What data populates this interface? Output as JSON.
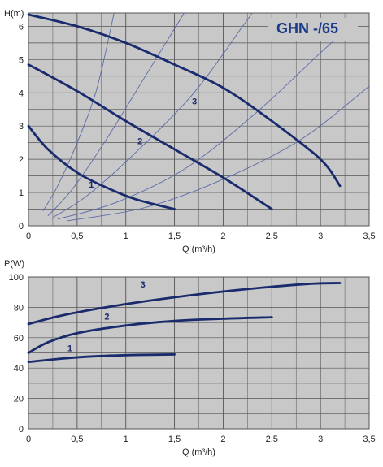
{
  "colors": {
    "background": "#c8c8c8",
    "grid": "#555555",
    "curve": "#1a2b6d",
    "system": "#5a6aa8",
    "title": "#1a3a8a"
  },
  "chart_data": [
    {
      "type": "line",
      "title": "GHN -/65",
      "ylabel": "H(m)",
      "xlabel": "Q (m³/h)",
      "xlim": [
        0,
        3.5
      ],
      "ylim": [
        0,
        6.4
      ],
      "x_ticks": [
        0,
        0.5,
        1,
        1.5,
        2,
        2.5,
        3,
        3.5
      ],
      "x_tick_labels": [
        "0",
        "0,5",
        "1",
        "1,5",
        "2",
        "2,5",
        "3",
        "3,5"
      ],
      "y_ticks": [
        0,
        1,
        2,
        3,
        4,
        5,
        6
      ],
      "y_tick_labels": [
        "0",
        "1",
        "2",
        "3",
        "4",
        "5",
        "6"
      ],
      "grid": true,
      "series": [
        {
          "name": "1",
          "label_at": [
            0.62,
            1.15
          ],
          "points": [
            [
              0,
              3.0
            ],
            [
              0.2,
              2.3
            ],
            [
              0.5,
              1.6
            ],
            [
              0.8,
              1.15
            ],
            [
              1.1,
              0.8
            ],
            [
              1.5,
              0.5
            ]
          ]
        },
        {
          "name": "2",
          "label_at": [
            1.12,
            2.45
          ],
          "points": [
            [
              0,
              4.85
            ],
            [
              0.5,
              4.05
            ],
            [
              1.0,
              3.15
            ],
            [
              1.5,
              2.3
            ],
            [
              2.0,
              1.45
            ],
            [
              2.5,
              0.5
            ]
          ]
        },
        {
          "name": "3",
          "label_at": [
            1.68,
            3.65
          ],
          "points": [
            [
              0,
              6.35
            ],
            [
              0.5,
              6.0
            ],
            [
              1.0,
              5.5
            ],
            [
              1.5,
              4.85
            ],
            [
              2.0,
              4.15
            ],
            [
              2.5,
              3.15
            ],
            [
              3.0,
              2.0
            ],
            [
              3.2,
              1.2
            ]
          ]
        }
      ],
      "system_curves": [
        {
          "points": [
            [
              0.15,
              0.45
            ],
            [
              0.3,
              1.2
            ],
            [
              0.5,
              2.5
            ],
            [
              0.7,
              4.1
            ],
            [
              0.88,
              6.4
            ]
          ]
        },
        {
          "points": [
            [
              0.2,
              0.3
            ],
            [
              0.45,
              1.1
            ],
            [
              0.8,
              2.6
            ],
            [
              1.2,
              4.5
            ],
            [
              1.6,
              6.4
            ]
          ]
        },
        {
          "points": [
            [
              0.25,
              0.25
            ],
            [
              0.6,
              0.9
            ],
            [
              1.1,
              2.2
            ],
            [
              1.7,
              4.0
            ],
            [
              2.2,
              6.0
            ],
            [
              2.3,
              6.4
            ]
          ]
        },
        {
          "points": [
            [
              0.3,
              0.2
            ],
            [
              0.9,
              0.7
            ],
            [
              1.6,
              1.7
            ],
            [
              2.3,
              3.3
            ],
            [
              3.0,
              5.2
            ],
            [
              3.3,
              6.0
            ]
          ]
        },
        {
          "points": [
            [
              0.4,
              0.15
            ],
            [
              1.2,
              0.55
            ],
            [
              2.0,
              1.4
            ],
            [
              2.8,
              2.6
            ],
            [
              3.5,
              4.2
            ]
          ]
        }
      ]
    },
    {
      "type": "line",
      "ylabel": "P(W)",
      "xlabel": "Q (m³/h)",
      "xlim": [
        0,
        3.5
      ],
      "ylim": [
        0,
        100
      ],
      "x_ticks": [
        0,
        0.5,
        1,
        1.5,
        2,
        2.5,
        3,
        3.5
      ],
      "x_tick_labels": [
        "0",
        "0,5",
        "1",
        "1,5",
        "2",
        "2,5",
        "3",
        "3,5"
      ],
      "y_ticks": [
        0,
        20,
        40,
        60,
        80,
        100
      ],
      "y_tick_labels": [
        "0",
        "20",
        "40",
        "60",
        "80",
        "100"
      ],
      "grid": true,
      "series": [
        {
          "name": "1",
          "label_at": [
            0.4,
            51
          ],
          "points": [
            [
              0,
              44
            ],
            [
              0.3,
              46
            ],
            [
              0.6,
              47.5
            ],
            [
              1.0,
              48.5
            ],
            [
              1.5,
              49
            ]
          ]
        },
        {
          "name": "2",
          "label_at": [
            0.78,
            72
          ],
          "points": [
            [
              0,
              50
            ],
            [
              0.2,
              57
            ],
            [
              0.5,
              63
            ],
            [
              1.0,
              68
            ],
            [
              1.5,
              71
            ],
            [
              2.0,
              72.5
            ],
            [
              2.5,
              73.5
            ]
          ]
        },
        {
          "name": "3",
          "label_at": [
            1.15,
            93
          ],
          "points": [
            [
              0,
              69
            ],
            [
              0.3,
              74
            ],
            [
              0.7,
              79
            ],
            [
              1.2,
              84
            ],
            [
              1.8,
              89
            ],
            [
              2.4,
              93
            ],
            [
              2.9,
              95.5
            ],
            [
              3.2,
              96
            ]
          ]
        }
      ]
    }
  ]
}
